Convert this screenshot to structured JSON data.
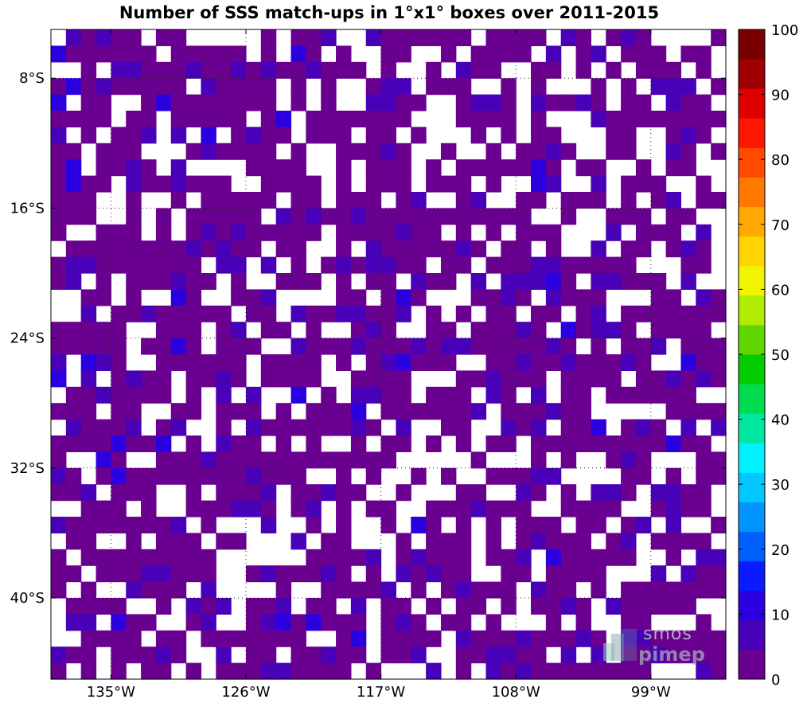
{
  "title": "Number of SSS match-ups in 1°x1° boxes over 2011-2015",
  "watermark": {
    "line1": "smos",
    "line2": "pimep"
  },
  "chart_data": {
    "type": "heatmap",
    "title": "Number of SSS match-ups in 1°x1° boxes over 2011-2015",
    "xlim": [
      -139,
      -94
    ],
    "ylim": [
      -45,
      -5
    ],
    "x_ticks": [
      {
        "value": -135,
        "label": "135°W"
      },
      {
        "value": -126,
        "label": "126°W"
      },
      {
        "value": -117,
        "label": "117°W"
      },
      {
        "value": -108,
        "label": "108°W"
      },
      {
        "value": -99,
        "label": "99°W"
      }
    ],
    "y_ticks": [
      {
        "value": -8,
        "label": "8°S"
      },
      {
        "value": -16,
        "label": "16°S"
      },
      {
        "value": -24,
        "label": "24°S"
      },
      {
        "value": -32,
        "label": "32°S"
      },
      {
        "value": -40,
        "label": "40°S"
      }
    ],
    "grid": true,
    "colorbar": {
      "min": 0,
      "max": 100,
      "ticks": [
        0,
        10,
        20,
        30,
        40,
        50,
        60,
        70,
        80,
        90,
        100
      ],
      "colors": [
        "#6a0090",
        "#4800b8",
        "#2a00e0",
        "#0a1cff",
        "#0060ff",
        "#0094ff",
        "#00c8ff",
        "#00f0ff",
        "#00e8a0",
        "#00dc50",
        "#00cc00",
        "#60d800",
        "#b0ec00",
        "#f0f400",
        "#ffd400",
        "#ffa800",
        "#ff7800",
        "#ff4a00",
        "#ff1600",
        "#e00000",
        "#a00000",
        "#7a0000"
      ]
    }
  }
}
